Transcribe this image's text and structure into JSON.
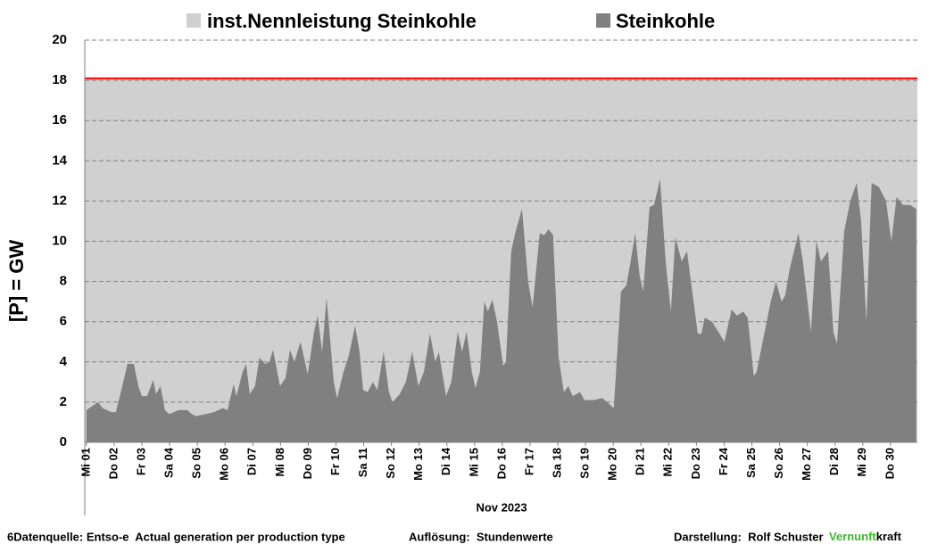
{
  "chart_data": {
    "type": "area",
    "ylabel": "[P]  =  GW",
    "xlabel": "Nov 2023",
    "ylim": [
      0,
      20
    ],
    "yticks": [
      0,
      2,
      4,
      6,
      8,
      10,
      12,
      14,
      16,
      18,
      20
    ],
    "xlim": [
      0.94,
      30.97
    ],
    "xticks": [
      {
        "value": 1,
        "label": "Mi 01"
      },
      {
        "value": 2,
        "label": "Do 02"
      },
      {
        "value": 3,
        "label": "Fr 03"
      },
      {
        "value": 4,
        "label": "Sa 04"
      },
      {
        "value": 5,
        "label": "So 05"
      },
      {
        "value": 6,
        "label": "Mo 06"
      },
      {
        "value": 7,
        "label": "Di 07"
      },
      {
        "value": 8,
        "label": "Mi 08"
      },
      {
        "value": 9,
        "label": "Do 09"
      },
      {
        "value": 10,
        "label": "Fr 10"
      },
      {
        "value": 11,
        "label": "Sa 11"
      },
      {
        "value": 12,
        "label": "So 12"
      },
      {
        "value": 13,
        "label": "Mo 13"
      },
      {
        "value": 14,
        "label": "Di 14"
      },
      {
        "value": 15,
        "label": "Mi 15"
      },
      {
        "value": 16,
        "label": "Do 16"
      },
      {
        "value": 17,
        "label": "Fr 17"
      },
      {
        "value": 18,
        "label": "Sa 18"
      },
      {
        "value": 19,
        "label": "So 19"
      },
      {
        "value": 20,
        "label": "Mo 20"
      },
      {
        "value": 21,
        "label": "Di 21"
      },
      {
        "value": 22,
        "label": "Mi 22"
      },
      {
        "value": 23,
        "label": "Do 23"
      },
      {
        "value": 24,
        "label": "Fr 24"
      },
      {
        "value": 25,
        "label": "Sa 25"
      },
      {
        "value": 26,
        "label": "So 26"
      },
      {
        "value": 27,
        "label": "Mo 27"
      },
      {
        "value": 28,
        "label": "Di 28"
      },
      {
        "value": 29,
        "label": "Mi 29"
      },
      {
        "value": 30,
        "label": "Do 30"
      }
    ],
    "grid": true,
    "capacity": {
      "name": "inst.Nennleistung Steinkohle",
      "value": 18.1,
      "color": "#d0d0d0",
      "line_color": "#ff0000"
    },
    "series": [
      {
        "name": "Steinkohle",
        "color": "#808080",
        "x": [
          1.0,
          1.42,
          1.58,
          1.9,
          2.06,
          2.26,
          2.48,
          2.71,
          2.87,
          3.0,
          3.19,
          3.41,
          3.51,
          3.67,
          3.83,
          3.99,
          4.32,
          4.64,
          4.8,
          4.96,
          5.28,
          5.6,
          5.76,
          5.92,
          6.09,
          6.31,
          6.41,
          6.63,
          6.76,
          6.89,
          7.08,
          7.24,
          7.44,
          7.6,
          7.73,
          7.98,
          8.18,
          8.34,
          8.5,
          8.72,
          8.98,
          9.21,
          9.34,
          9.5,
          9.66,
          9.92,
          10.04,
          10.27,
          10.46,
          10.69,
          10.85,
          10.98,
          11.14,
          11.33,
          11.49,
          11.72,
          11.91,
          12.04,
          12.3,
          12.52,
          12.75,
          12.97,
          13.17,
          13.39,
          13.58,
          13.71,
          13.97,
          14.16,
          14.39,
          14.55,
          14.71,
          14.9,
          15.03,
          15.19,
          15.35,
          15.48,
          15.64,
          15.81,
          16.03,
          16.13,
          16.32,
          16.48,
          16.71,
          16.93,
          17.09,
          17.35,
          17.51,
          17.67,
          17.83,
          18.03,
          18.22,
          18.38,
          18.54,
          18.8,
          18.96,
          19.28,
          19.61,
          19.86,
          20.02,
          20.28,
          20.47,
          20.63,
          20.79,
          20.95,
          21.08,
          21.31,
          21.47,
          21.69,
          21.89,
          22.08,
          22.24,
          22.47,
          22.66,
          22.85,
          23.05,
          23.18,
          23.3,
          23.56,
          23.79,
          24.01,
          24.27,
          24.46,
          24.69,
          24.85,
          25.07,
          25.17,
          25.39,
          25.68,
          25.87,
          26.07,
          26.2,
          26.36,
          26.68,
          26.84,
          27.13,
          27.33,
          27.49,
          27.75,
          27.94,
          28.07,
          28.33,
          28.55,
          28.78,
          28.94,
          29.13,
          29.32,
          29.58,
          29.84,
          30.03,
          30.22,
          30.45,
          30.71,
          30.93
        ],
        "values": [
          1.6,
          2.0,
          1.7,
          1.5,
          1.5,
          2.6,
          3.9,
          3.9,
          2.8,
          2.3,
          2.3,
          3.1,
          2.4,
          2.8,
          1.6,
          1.4,
          1.6,
          1.6,
          1.4,
          1.3,
          1.4,
          1.5,
          1.6,
          1.7,
          1.6,
          2.9,
          2.3,
          3.5,
          3.9,
          2.4,
          2.8,
          4.2,
          3.9,
          4.0,
          4.6,
          2.8,
          3.2,
          4.6,
          4.0,
          5.0,
          3.4,
          5.5,
          6.3,
          4.5,
          7.2,
          3.0,
          2.2,
          3.5,
          4.3,
          5.8,
          4.5,
          2.6,
          2.5,
          3.0,
          2.6,
          4.5,
          2.5,
          2.0,
          2.4,
          3.0,
          4.5,
          2.8,
          3.5,
          5.4,
          4.0,
          4.5,
          2.3,
          3.0,
          5.5,
          4.5,
          5.5,
          3.5,
          2.7,
          3.5,
          7.0,
          6.5,
          7.1,
          6.0,
          3.8,
          4.0,
          9.5,
          10.5,
          11.6,
          8.0,
          6.7,
          10.4,
          10.3,
          10.6,
          10.3,
          4.2,
          2.5,
          2.8,
          2.3,
          2.5,
          2.1,
          2.1,
          2.2,
          1.9,
          1.7,
          7.5,
          7.8,
          9.0,
          10.4,
          8.3,
          7.5,
          11.7,
          11.8,
          13.1,
          9.0,
          6.5,
          10.2,
          9.0,
          9.5,
          7.5,
          5.4,
          5.4,
          6.2,
          6.0,
          5.5,
          5.0,
          6.6,
          6.3,
          6.5,
          6.2,
          3.3,
          3.5,
          5.0,
          7.0,
          8.0,
          7.0,
          7.3,
          8.6,
          10.4,
          9.0,
          5.5,
          10.0,
          9.0,
          9.5,
          5.5,
          4.9,
          10.5,
          12.0,
          12.9,
          11.0,
          6.0,
          12.9,
          12.7,
          12.0,
          10.0,
          12.2,
          11.8,
          11.8,
          11.6
        ]
      }
    ]
  },
  "footer": {
    "source": "6Datenquelle: Entso-e  Actual generation per production type",
    "resolution": "Auflösung:  Stundenwerte",
    "author": "Darstellung:  Rolf Schuster",
    "brand_green": "Vernunft",
    "brand_black": "kraft"
  }
}
